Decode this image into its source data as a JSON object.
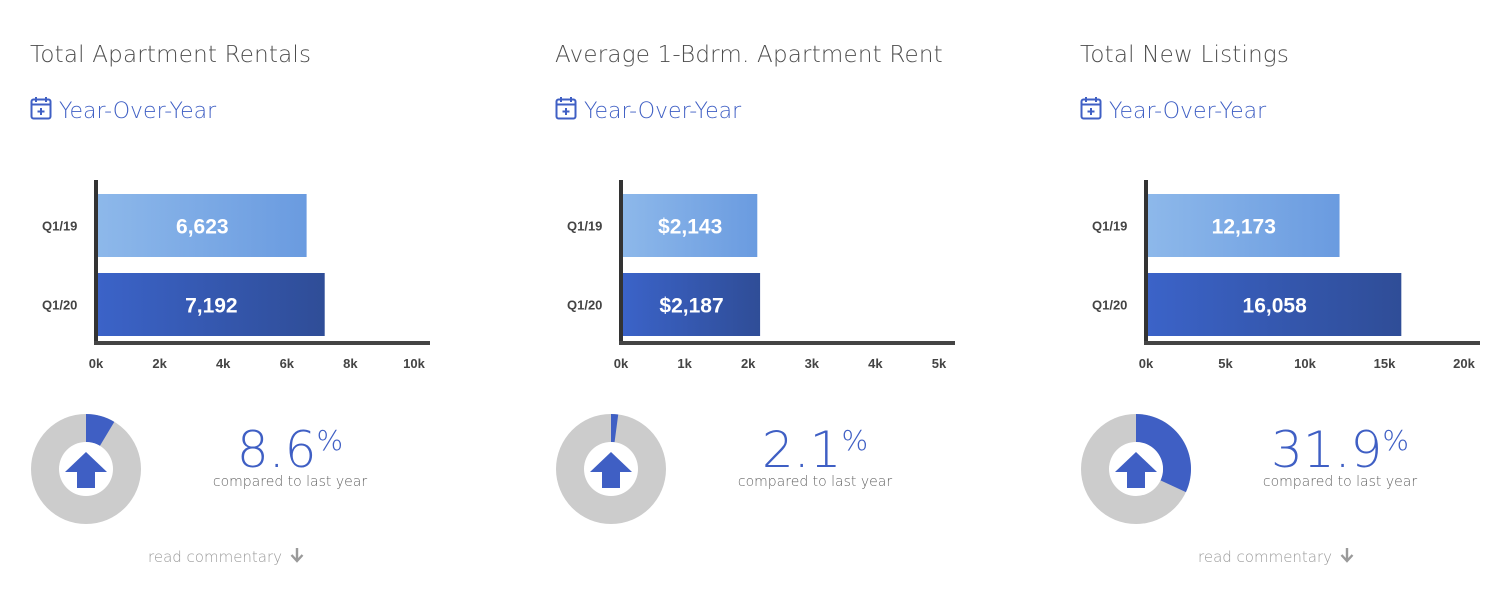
{
  "colors": {
    "accent": "#3f5fc4",
    "bar_light": "#7aa9e6",
    "bar_dark": "#3556b4",
    "donut_bg": "#cccccc",
    "axis": "#333333"
  },
  "panels": [
    {
      "title": "Total Apartment Rentals",
      "period": "Year-Over-Year",
      "pct_value": "8.6",
      "pct_sign": "%",
      "compare_text": "compared to last year",
      "read_commentary": "read commentary",
      "has_commentary": true
    },
    {
      "title": "Average 1-Bdrm. Apartment Rent",
      "period": "Year-Over-Year",
      "pct_value": "2.1",
      "pct_sign": "%",
      "compare_text": "compared to last year",
      "read_commentary": "",
      "has_commentary": false
    },
    {
      "title": "Total New Listings",
      "period": "Year-Over-Year",
      "pct_value": "31.9",
      "pct_sign": "%",
      "compare_text": "compared to last year",
      "read_commentary": "read commentary",
      "has_commentary": true
    }
  ],
  "chart_data": [
    {
      "type": "bar",
      "orientation": "horizontal",
      "categories": [
        "Q1/19",
        "Q1/20"
      ],
      "values": [
        6623,
        7192
      ],
      "value_labels": [
        "6,623",
        "7,192"
      ],
      "xlim": [
        0,
        10000
      ],
      "xticks": [
        0,
        2000,
        4000,
        6000,
        8000,
        10000
      ],
      "xtick_labels": [
        "0k",
        "2k",
        "4k",
        "6k",
        "8k",
        "10k"
      ],
      "change_pct": 8.6
    },
    {
      "type": "bar",
      "orientation": "horizontal",
      "categories": [
        "Q1/19",
        "Q1/20"
      ],
      "values": [
        2143,
        2187
      ],
      "value_labels": [
        "$2,143",
        "$2,187"
      ],
      "xlim": [
        0,
        5000
      ],
      "xticks": [
        0,
        1000,
        2000,
        3000,
        4000,
        5000
      ],
      "xtick_labels": [
        "0k",
        "1k",
        "2k",
        "3k",
        "4k",
        "5k"
      ],
      "change_pct": 2.1
    },
    {
      "type": "bar",
      "orientation": "horizontal",
      "categories": [
        "Q1/19",
        "Q1/20"
      ],
      "values": [
        12173,
        16058
      ],
      "value_labels": [
        "12,173",
        "16,058"
      ],
      "xlim": [
        0,
        20000
      ],
      "xticks": [
        0,
        5000,
        10000,
        15000,
        20000
      ],
      "xtick_labels": [
        "0k",
        "5k",
        "10k",
        "15k",
        "20k"
      ],
      "change_pct": 31.9
    }
  ]
}
